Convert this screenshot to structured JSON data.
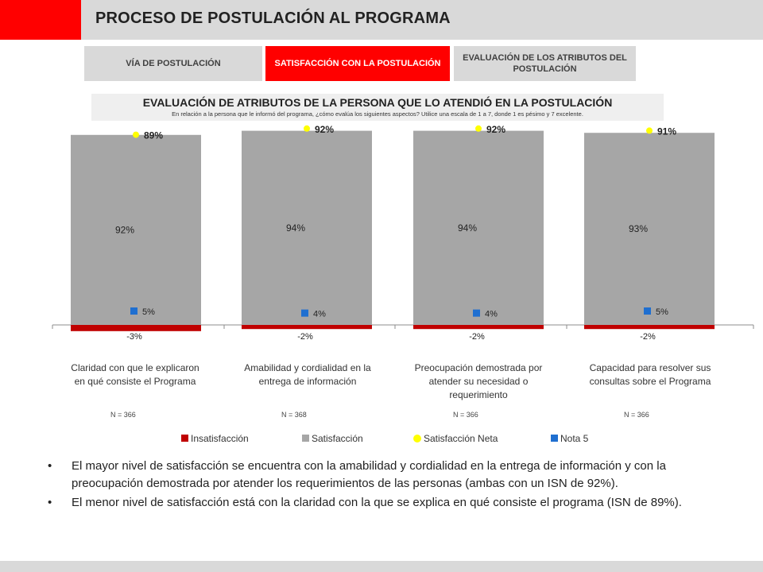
{
  "header": {
    "title": "PROCESO DE POSTULACIÓN AL PROGRAMA"
  },
  "tabs": [
    {
      "label": "VÍA DE POSTULACIÓN"
    },
    {
      "label": "SATISFACCIÓN CON LA POSTULACIÓN"
    },
    {
      "label": "EVALUACIÓN DE LOS ATRIBUTOS DEL POSTULACIÓN"
    }
  ],
  "subtitle": {
    "main": "EVALUACIÓN DE ATRIBUTOS DE LA PERSONA QUE LO ATENDIÓ EN LA POSTULACIÓN",
    "sub": "En relación a la persona que le informó del programa, ¿cómo evalúa los siguientes aspectos? Utilice una escala de 1 a 7, donde 1 es pésimo y 7 excelente."
  },
  "colors": {
    "brand_red": "#ff0000",
    "insatisfaccion": "#c00000",
    "satisfaccion": "#a6a6a6",
    "satisfaccion_neta": "#ffff00",
    "nota5": "#1f6fd0",
    "header_gray": "#d9d9d9"
  },
  "chart_data": {
    "type": "bar",
    "categories": [
      "Claridad con que le explicaron en qué consiste el Programa",
      "Amabilidad y cordialidad en la entrega de información",
      "Preocupación demostrada por atender su necesidad o requerimiento",
      "Capacidad para resolver sus consultas sobre el Programa"
    ],
    "n_labels": [
      "N = 366",
      "N = 368",
      "N = 366",
      "N = 366"
    ],
    "series": [
      {
        "name": "Insatisfacción",
        "values": [
          -3,
          -2,
          -2,
          -2
        ],
        "labels": [
          "-3%",
          "-2%",
          "-2%",
          "-2%"
        ]
      },
      {
        "name": "Satisfacción",
        "values": [
          92,
          94,
          94,
          93
        ],
        "labels": [
          "92%",
          "94%",
          "94%",
          "93%"
        ]
      },
      {
        "name": "Satisfacción Neta",
        "values": [
          89,
          92,
          92,
          91
        ],
        "labels": [
          "89%",
          "92%",
          "92%",
          "91%"
        ]
      },
      {
        "name": "Nota 5",
        "values": [
          5,
          4,
          4,
          5
        ],
        "labels": [
          "5%",
          "4%",
          "4%",
          "5%"
        ]
      }
    ],
    "legend_position": "bottom",
    "grid": false
  },
  "bullets": [
    "El mayor nivel de satisfacción se encuentra con la amabilidad y cordialidad en la entrega de información y con la preocupación demostrada por atender los requerimientos de las personas (ambas con un ISN de 92%).",
    "El menor nivel de satisfacción está con la claridad con la que se explica en qué consiste el programa (ISN de 89%)."
  ]
}
